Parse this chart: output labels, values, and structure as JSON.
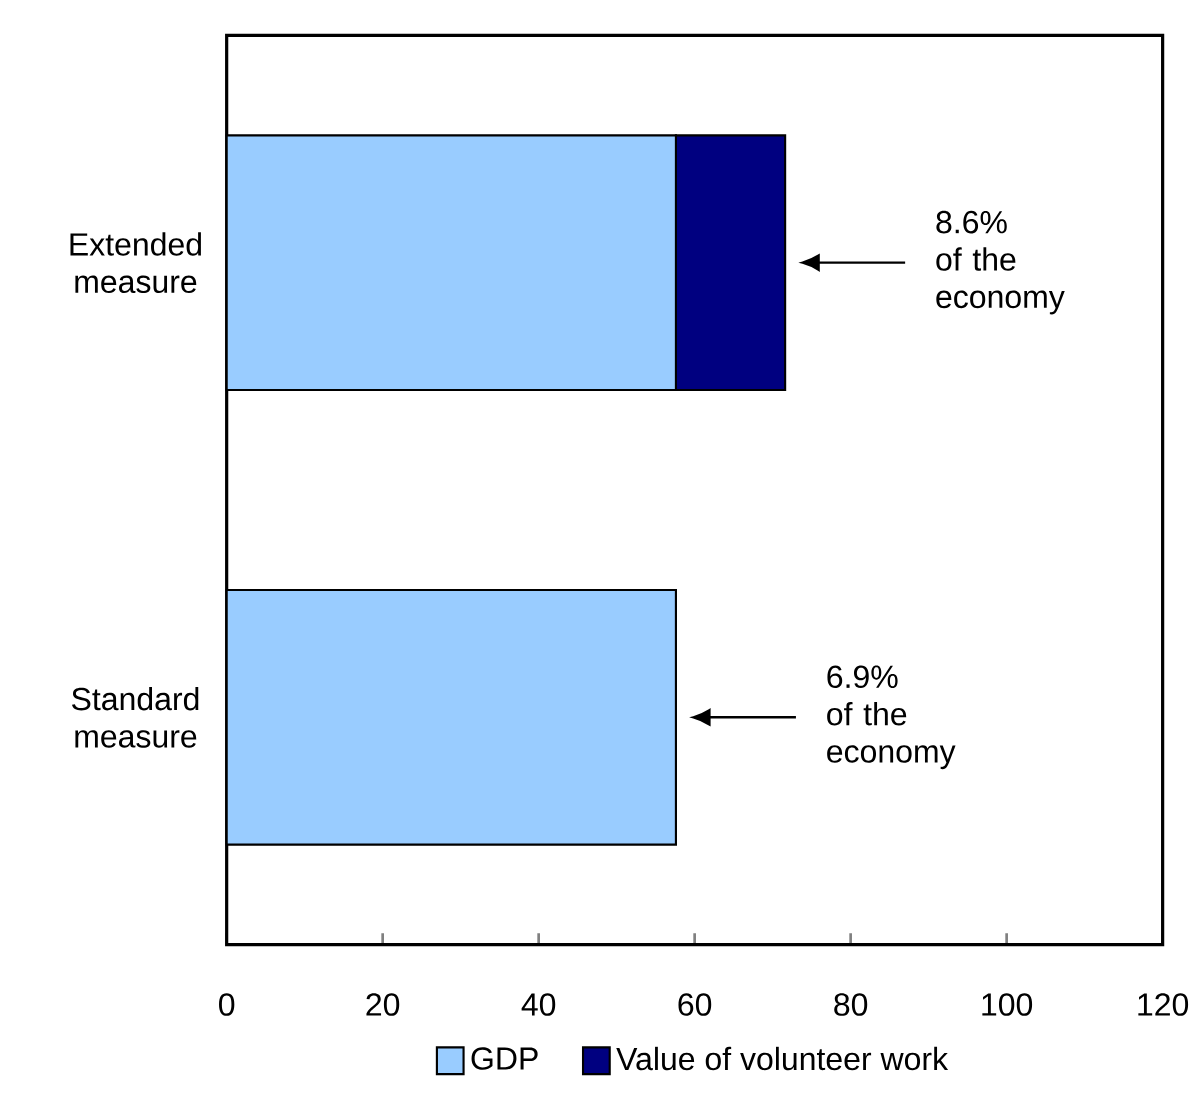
{
  "chart_data": {
    "type": "bar",
    "orientation": "horizontal",
    "stacked": true,
    "categories": [
      "Extended measure",
      "Standard measure"
    ],
    "series": [
      {
        "name": "GDP",
        "color": "#99ccff",
        "values": [
          57.6,
          57.6
        ]
      },
      {
        "name": "Value of volunteer work",
        "color": "#000080",
        "values": [
          14.0,
          null
        ]
      }
    ],
    "xlim": [
      0,
      120
    ],
    "xticks": [
      0,
      20,
      40,
      60,
      80,
      100,
      120
    ],
    "legend": "bottom",
    "grid": false,
    "annotations": [
      "8.6% of the economy",
      "6.9% of the economy"
    ]
  }
}
